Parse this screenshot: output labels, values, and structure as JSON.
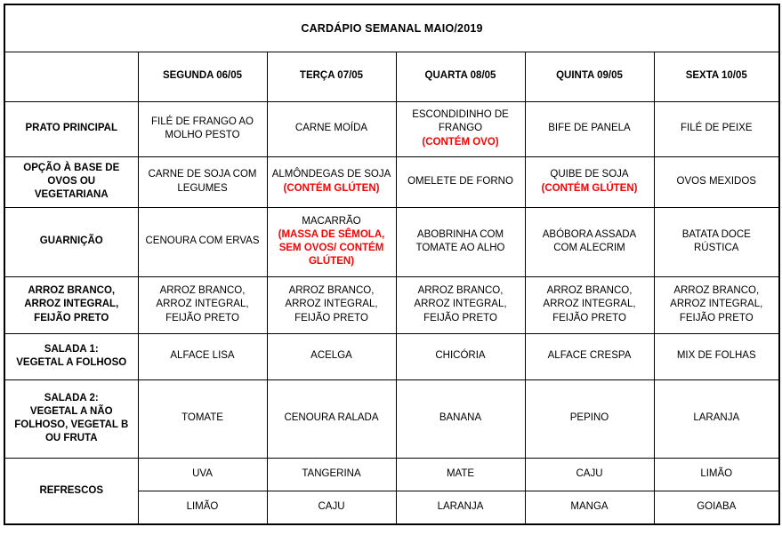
{
  "title": "CARDÁPIO SEMANAL MAIO/2019",
  "colors": {
    "alert_red": "#ff0000",
    "border": "#000000",
    "text": "#000000",
    "background": "#ffffff"
  },
  "header": {
    "day_columns": [
      "SEGUNDA 06/05",
      "TERÇA 07/05",
      "QUARTA 08/05",
      "QUINTA 09/05",
      "SEXTA 10/05"
    ]
  },
  "rows": [
    {
      "label_lines": [
        "PRATO PRINCIPAL"
      ],
      "cells": [
        [
          {
            "red": false,
            "lines": [
              "FILÉ DE FRANGO AO",
              "MOLHO PESTO"
            ]
          }
        ],
        [
          {
            "red": false,
            "lines": [
              "CARNE MOÍDA"
            ]
          }
        ],
        [
          {
            "red": false,
            "lines": [
              "ESCONDIDINHO DE",
              "FRANGO"
            ]
          },
          {
            "red": true,
            "lines": [
              "(CONTÉM OVO)"
            ]
          }
        ],
        [
          {
            "red": false,
            "lines": [
              "BIFE DE PANELA"
            ]
          }
        ],
        [
          {
            "red": false,
            "lines": [
              "FILÉ DE PEIXE"
            ]
          }
        ]
      ]
    },
    {
      "label_lines": [
        "OPÇÃO À BASE DE",
        "OVOS OU",
        "VEGETARIANA"
      ],
      "cells": [
        [
          {
            "red": false,
            "lines": [
              "CARNE DE SOJA COM",
              "LEGUMES"
            ]
          }
        ],
        [
          {
            "red": false,
            "lines": [
              "ALMÔNDEGAS DE SOJA"
            ]
          },
          {
            "red": true,
            "lines": [
              "(CONTÉM GLÚTEN)"
            ]
          }
        ],
        [
          {
            "red": false,
            "lines": [
              "OMELETE DE FORNO"
            ]
          }
        ],
        [
          {
            "red": false,
            "lines": [
              "QUIBE DE SOJA"
            ]
          },
          {
            "red": true,
            "lines": [
              "(CONTÉM GLÚTEN)"
            ]
          }
        ],
        [
          {
            "red": false,
            "lines": [
              "OVOS MEXIDOS"
            ]
          }
        ]
      ]
    },
    {
      "label_lines": [
        "GUARNIÇÃO"
      ],
      "cells": [
        [
          {
            "red": false,
            "lines": [
              "CENOURA COM ERVAS"
            ]
          }
        ],
        [
          {
            "red": false,
            "lines": [
              "MACARRÃO"
            ]
          },
          {
            "red": true,
            "lines": [
              "(MASSA DE SÊMOLA,",
              "SEM OVOS/ CONTÉM",
              "GLÚTEN)"
            ]
          }
        ],
        [
          {
            "red": false,
            "lines": [
              "ABOBRINHA COM",
              "TOMATE AO ALHO"
            ]
          }
        ],
        [
          {
            "red": false,
            "lines": [
              "ABÓBORA ASSADA",
              "COM ALECRIM"
            ]
          }
        ],
        [
          {
            "red": false,
            "lines": [
              "BATATA DOCE",
              "RÚSTICA"
            ]
          }
        ]
      ]
    },
    {
      "label_lines": [
        "ARROZ BRANCO,",
        "ARROZ INTEGRAL,",
        "FEIJÃO PRETO"
      ],
      "cells": [
        [
          {
            "red": false,
            "lines": [
              "ARROZ BRANCO,",
              "ARROZ INTEGRAL,",
              "FEIJÃO PRETO"
            ]
          }
        ],
        [
          {
            "red": false,
            "lines": [
              "ARROZ BRANCO,",
              "ARROZ INTEGRAL,",
              "FEIJÃO PRETO"
            ]
          }
        ],
        [
          {
            "red": false,
            "lines": [
              "ARROZ BRANCO,",
              "ARROZ INTEGRAL,",
              "FEIJÃO PRETO"
            ]
          }
        ],
        [
          {
            "red": false,
            "lines": [
              "ARROZ BRANCO,",
              "ARROZ INTEGRAL,",
              "FEIJÃO PRETO"
            ]
          }
        ],
        [
          {
            "red": false,
            "lines": [
              "ARROZ BRANCO,",
              "ARROZ INTEGRAL,",
              "FEIJÃO PRETO"
            ]
          }
        ]
      ]
    },
    {
      "label_lines": [
        "SALADA 1:",
        "VEGETAL A FOLHOSO"
      ],
      "cells": [
        [
          {
            "red": false,
            "lines": [
              "ALFACE LISA"
            ]
          }
        ],
        [
          {
            "red": false,
            "lines": [
              "ACELGA"
            ]
          }
        ],
        [
          {
            "red": false,
            "lines": [
              "CHICÓRIA"
            ]
          }
        ],
        [
          {
            "red": false,
            "lines": [
              "ALFACE CRESPA"
            ]
          }
        ],
        [
          {
            "red": false,
            "lines": [
              "MIX DE FOLHAS"
            ]
          }
        ]
      ]
    },
    {
      "label_lines": [
        "SALADA 2:",
        "VEGETAL A NÃO",
        "FOLHOSO, VEGETAL B",
        "OU FRUTA"
      ],
      "cells": [
        [
          {
            "red": false,
            "lines": [
              "TOMATE"
            ]
          }
        ],
        [
          {
            "red": false,
            "lines": [
              "CENOURA RALADA"
            ]
          }
        ],
        [
          {
            "red": false,
            "lines": [
              "BANANA"
            ]
          }
        ],
        [
          {
            "red": false,
            "lines": [
              "PEPINO"
            ]
          }
        ],
        [
          {
            "red": false,
            "lines": [
              "LARANJA"
            ]
          }
        ]
      ]
    },
    {
      "label_lines": [
        "REFRESCOS"
      ],
      "sub_rows": [
        [
          [
            {
              "red": false,
              "lines": [
                "UVA"
              ]
            }
          ],
          [
            {
              "red": false,
              "lines": [
                "TANGERINA"
              ]
            }
          ],
          [
            {
              "red": false,
              "lines": [
                "MATE"
              ]
            }
          ],
          [
            {
              "red": false,
              "lines": [
                "CAJU"
              ]
            }
          ],
          [
            {
              "red": false,
              "lines": [
                "LIMÃO"
              ]
            }
          ]
        ],
        [
          [
            {
              "red": false,
              "lines": [
                "LIMÃO"
              ]
            }
          ],
          [
            {
              "red": false,
              "lines": [
                "CAJU"
              ]
            }
          ],
          [
            {
              "red": false,
              "lines": [
                "LARANJA"
              ]
            }
          ],
          [
            {
              "red": false,
              "lines": [
                "MANGA"
              ]
            }
          ],
          [
            {
              "red": false,
              "lines": [
                "GOIABA"
              ]
            }
          ]
        ]
      ]
    }
  ]
}
